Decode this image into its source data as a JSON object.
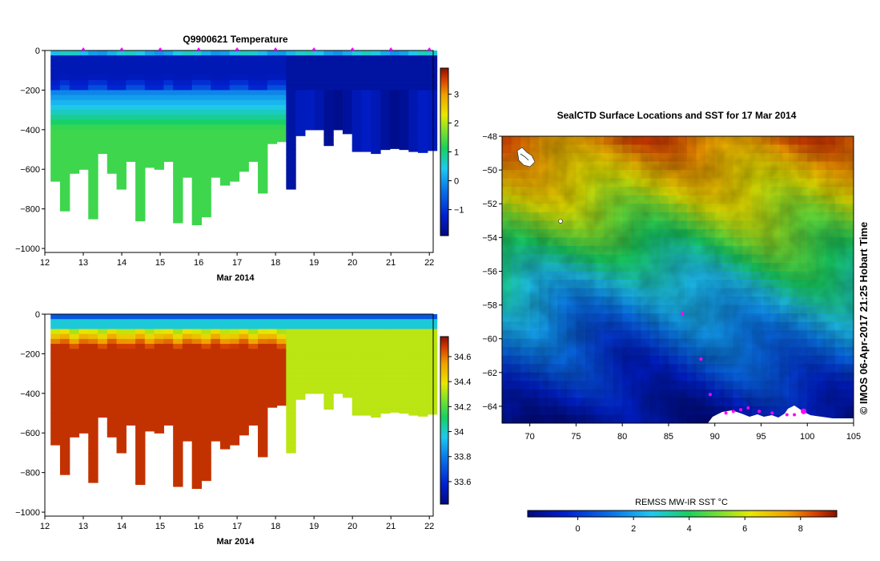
{
  "chart_data": [
    {
      "type": "heatmap",
      "name": "temperature-section",
      "title": "Q9900621  Temperature",
      "xlabel": "Mar 2014",
      "ylabel": "",
      "xlim": [
        12,
        22.1
      ],
      "ylim": [
        -1020,
        0
      ],
      "x_ticks": [
        12,
        13,
        14,
        15,
        16,
        17,
        18,
        19,
        20,
        21,
        22
      ],
      "y_ticks": [
        0,
        -200,
        -400,
        -600,
        -800,
        -1000
      ],
      "y_tick_labels": [
        "0",
        "−200",
        "−400",
        "−600",
        "−800",
        "−1000"
      ],
      "colorbar": {
        "min": -1.9,
        "max": 3.9,
        "ticks": [
          3,
          2,
          1,
          0,
          -1
        ],
        "tick_labels": [
          "3",
          "2",
          "1",
          "0",
          "−1"
        ]
      },
      "profile_markers_x": [
        13,
        14,
        15,
        16,
        17,
        18,
        19,
        20,
        21,
        22
      ]
    },
    {
      "type": "heatmap",
      "name": "salinity-section",
      "title": "",
      "xlabel": "Mar 2014",
      "ylabel": "",
      "xlim": [
        12,
        22.1
      ],
      "ylim": [
        -1020,
        0
      ],
      "x_ticks": [
        12,
        13,
        14,
        15,
        16,
        17,
        18,
        19,
        20,
        21,
        22
      ],
      "y_ticks": [
        0,
        -200,
        -400,
        -600,
        -800,
        -1000
      ],
      "y_tick_labels": [
        "0",
        "−200",
        "−400",
        "−600",
        "−800",
        "−1000"
      ],
      "colorbar": {
        "min": 33.42,
        "max": 34.76,
        "ticks": [
          34.6,
          34.4,
          34.2,
          34,
          33.8,
          33.6
        ],
        "tick_labels": [
          "34.6",
          "34.4",
          "34.2",
          "34",
          "33.8",
          "33.6"
        ]
      }
    },
    {
      "type": "heatmap",
      "name": "sst-map",
      "title": "SealCTD Surface Locations and SST for 17 Mar 2014",
      "xlim": [
        67,
        105
      ],
      "ylim": [
        -65,
        -48
      ],
      "x_ticks": [
        70,
        75,
        80,
        85,
        90,
        95,
        100,
        105
      ],
      "y_ticks": [
        -48,
        -50,
        -52,
        -54,
        -56,
        -58,
        -60,
        -62,
        -64
      ],
      "colorbar": {
        "label": "REMSS MW-IR SST °C",
        "min": -1.8,
        "max": 9.3,
        "ticks": [
          0,
          2,
          4,
          6,
          8
        ]
      },
      "seal_track_lon": [
        86.5,
        88.5,
        89.5,
        91.2,
        92.0,
        92.8,
        93.6,
        94.8,
        96.2,
        97.8,
        98.6,
        99.6
      ],
      "seal_track_lat": [
        -58.5,
        -61.2,
        -63.3,
        -64.4,
        -64.3,
        -64.2,
        -64.1,
        -64.3,
        -64.4,
        -64.5,
        -64.5,
        -64.3
      ],
      "credit": "© IMOS 06-Apr-2017 21:25 Hobart Time"
    }
  ]
}
